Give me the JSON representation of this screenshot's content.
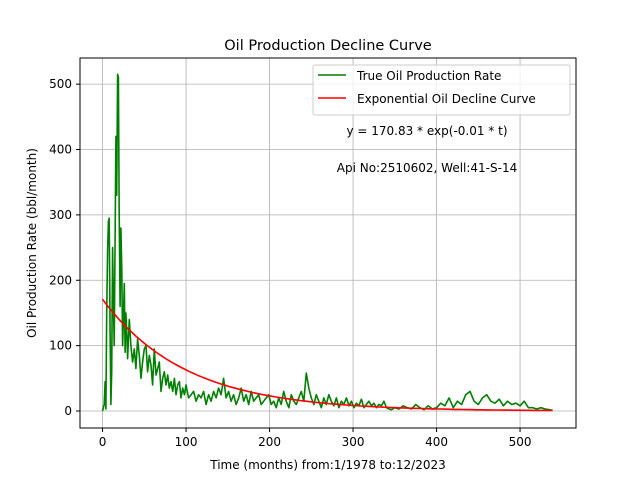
{
  "chart_data": {
    "type": "line",
    "title": "Oil Production Decline Curve",
    "xlabel": "Time (months) from:1/1978 to:12/2023",
    "ylabel": "Oil Production Rate (bbl/month)",
    "xlim": [
      -27,
      567
    ],
    "ylim": [
      -26,
      540
    ],
    "xticks": [
      0,
      100,
      200,
      300,
      400,
      500
    ],
    "yticks": [
      0,
      100,
      200,
      300,
      400,
      500
    ],
    "grid": true,
    "legend_position": "top-right",
    "annotations": [
      {
        "text": "y = 170.83 * exp(-0.01 * t)",
        "x": 388,
        "y": 423
      },
      {
        "text": "Api No:2510602, Well:41-S-14",
        "x": 388,
        "y": 375
      }
    ],
    "series": [
      {
        "name": "True Oil Production Rate",
        "color": "#008000",
        "kind": "actual",
        "x": [
          0,
          2,
          3,
          4,
          5,
          6,
          7,
          8,
          9,
          10,
          11,
          12,
          13,
          14,
          15,
          16,
          17,
          18,
          19,
          20,
          21,
          22,
          23,
          24,
          25,
          26,
          27,
          28,
          29,
          30,
          32,
          34,
          36,
          38,
          40,
          42,
          44,
          46,
          48,
          50,
          52,
          54,
          56,
          58,
          60,
          62,
          64,
          66,
          68,
          70,
          72,
          74,
          76,
          78,
          80,
          82,
          84,
          86,
          88,
          90,
          92,
          94,
          96,
          98,
          100,
          103,
          106,
          109,
          112,
          115,
          118,
          121,
          124,
          127,
          130,
          133,
          136,
          139,
          142,
          145,
          148,
          151,
          154,
          157,
          160,
          163,
          166,
          169,
          172,
          175,
          178,
          181,
          184,
          187,
          190,
          193,
          196,
          199,
          202,
          205,
          208,
          211,
          214,
          217,
          220,
          223,
          226,
          229,
          232,
          235,
          238,
          241,
          244,
          247,
          250,
          253,
          256,
          259,
          262,
          265,
          268,
          271,
          274,
          277,
          280,
          283,
          286,
          289,
          292,
          295,
          298,
          301,
          304,
          307,
          310,
          313,
          316,
          319,
          322,
          325,
          328,
          331,
          334,
          337,
          340,
          343,
          346,
          350,
          355,
          360,
          365,
          370,
          375,
          380,
          385,
          390,
          395,
          400,
          405,
          410,
          415,
          420,
          425,
          430,
          435,
          440,
          445,
          450,
          455,
          460,
          465,
          470,
          475,
          480,
          485,
          490,
          495,
          500,
          505,
          510,
          515,
          520,
          525,
          530,
          535,
          539
        ],
        "y": [
          0,
          10,
          45,
          3,
          150,
          245,
          290,
          295,
          120,
          10,
          60,
          250,
          170,
          100,
          260,
          420,
          330,
          515,
          510,
          300,
          160,
          280,
          215,
          100,
          140,
          195,
          90,
          150,
          120,
          80,
          140,
          100,
          75,
          95,
          65,
          110,
          85,
          50,
          75,
          95,
          100,
          60,
          85,
          70,
          40,
          95,
          55,
          65,
          75,
          30,
          50,
          60,
          40,
          55,
          35,
          45,
          30,
          50,
          25,
          40,
          45,
          20,
          35,
          25,
          40,
          20,
          25,
          30,
          15,
          25,
          20,
          30,
          10,
          25,
          15,
          30,
          20,
          35,
          25,
          50,
          20,
          30,
          15,
          25,
          10,
          20,
          35,
          15,
          25,
          10,
          30,
          15,
          20,
          25,
          10,
          15,
          20,
          25,
          10,
          15,
          5,
          20,
          10,
          30,
          15,
          5,
          25,
          15,
          10,
          20,
          30,
          15,
          58,
          35,
          20,
          10,
          25,
          15,
          5,
          20,
          10,
          25,
          15,
          8,
          20,
          5,
          15,
          10,
          20,
          8,
          15,
          5,
          12,
          8,
          18,
          5,
          10,
          15,
          8,
          12,
          5,
          10,
          8,
          15,
          5,
          3,
          2,
          5,
          3,
          8,
          5,
          3,
          10,
          5,
          2,
          8,
          3,
          5,
          12,
          8,
          20,
          5,
          15,
          10,
          25,
          30,
          15,
          10,
          20,
          25,
          15,
          12,
          18,
          8,
          15,
          10,
          12,
          8,
          15,
          5,
          5,
          3,
          5,
          3,
          2,
          1
        ]
      },
      {
        "name": "Exponential Oil Decline Curve",
        "color": "#ff0000",
        "kind": "fit",
        "a": 170.83,
        "b": -0.01,
        "x_range": [
          0,
          539
        ]
      }
    ]
  }
}
